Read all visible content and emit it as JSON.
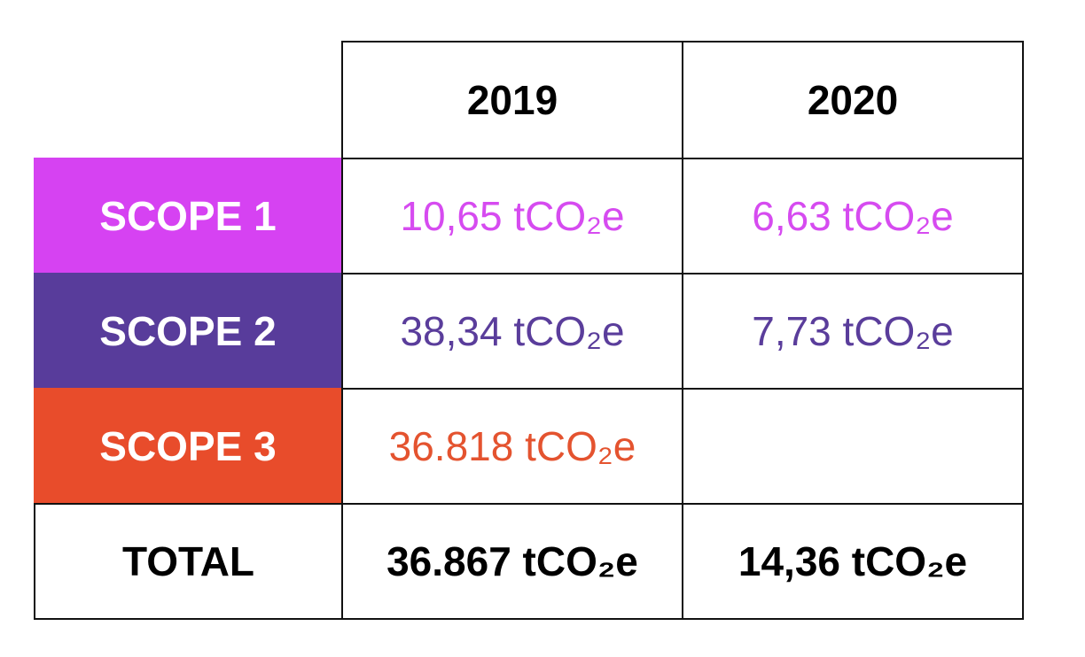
{
  "table": {
    "header": [
      "2019",
      "2020"
    ],
    "rows": [
      [
        "SCOPE 1",
        "10,65 tCO₂e",
        "6,63 tCO₂e"
      ],
      [
        "SCOPE 2",
        "38,34 tCO₂e",
        "7,73 tCO₂e"
      ],
      [
        "SCOPE 3",
        "36.818 tCO₂e",
        null
      ],
      [
        "TOTAL",
        "36.867 tCO₂e",
        "14,36 tCO₂e"
      ]
    ]
  }
}
